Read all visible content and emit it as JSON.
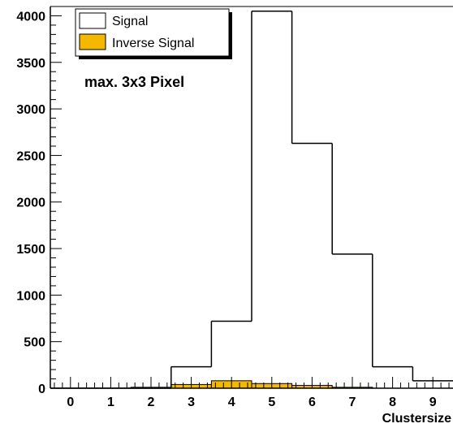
{
  "chart_data": {
    "type": "histogram",
    "xlabel": "Clustersize",
    "ylabel": "",
    "title": "",
    "annotation": "max. 3x3 Pixel",
    "xlim": [
      -0.5,
      9.5
    ],
    "ylim": [
      0,
      4100
    ],
    "x_ticks": [
      0,
      1,
      2,
      3,
      4,
      5,
      6,
      7,
      8,
      9
    ],
    "y_ticks": [
      0,
      500,
      1000,
      1500,
      2000,
      2500,
      3000,
      3500,
      4000
    ],
    "bins": [
      0,
      1,
      2,
      3,
      4,
      5,
      6,
      7,
      8,
      9
    ],
    "series": [
      {
        "name": "Signal",
        "style": "outline",
        "color": "#000000",
        "values": [
          0,
          0,
          0,
          230,
          720,
          4050,
          2630,
          1440,
          230,
          80
        ]
      },
      {
        "name": "Inverse Signal",
        "style": "filled",
        "color": "#f5b800",
        "values": [
          0,
          0,
          10,
          40,
          80,
          50,
          30,
          10,
          0,
          0
        ]
      }
    ],
    "legend": {
      "placement": "top-left"
    },
    "grid": false
  }
}
